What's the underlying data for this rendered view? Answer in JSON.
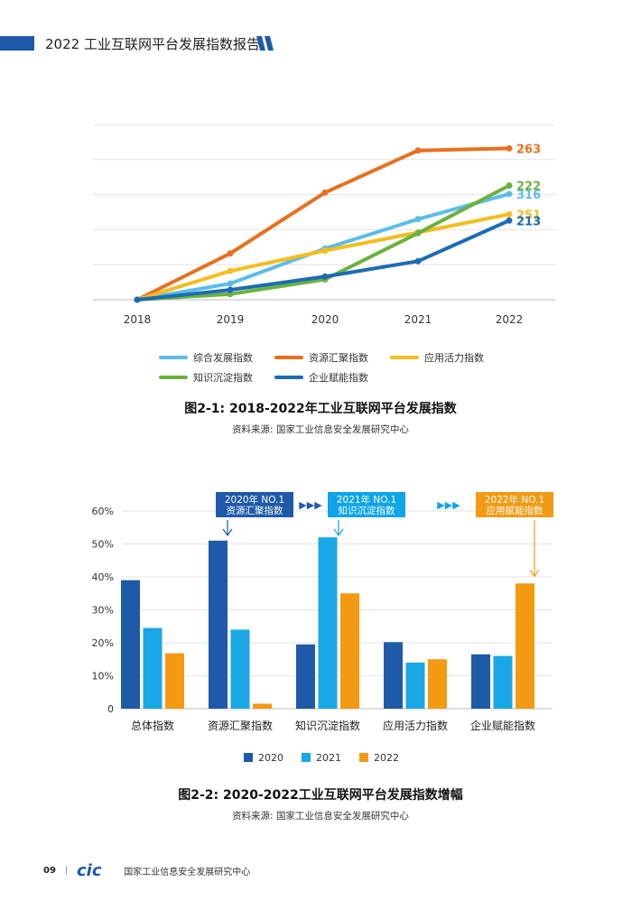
{
  "header": {
    "title": "2022 工业互联网平台发展指数报告"
  },
  "chart1": {
    "caption": "图2-1: 2018-2022年工业互联网平台发展指数",
    "source": "资料来源: 国家工业信息安全发展研究中心"
  },
  "chart2": {
    "caption": "图2-2: 2020-2022工业互联网平台发展指数增幅",
    "source": "资料来源: 国家工业信息安全发展研究中心",
    "callouts": [
      {
        "line1": "2020年 NO.1",
        "line2": "资源汇聚指数",
        "color": "#1e5aa8"
      },
      {
        "line1": "2021年 NO.1",
        "line2": "知识沉淀指数",
        "color": "#0ea5e9"
      },
      {
        "line1": "2022年 NO.1",
        "line2": "应用赋能指数",
        "color": "#f39a12"
      }
    ],
    "arrow_glyph": "▶▶▶"
  },
  "footer": {
    "page": "09",
    "separator": "|",
    "logo": "cic",
    "org": "国家工业信息安全发展研究中心"
  },
  "chart_data": [
    {
      "type": "line",
      "x": [
        "2018",
        "2019",
        "2020",
        "2021",
        "2022"
      ],
      "ylim": [
        100,
        350
      ],
      "grid": true,
      "legend": "bottom",
      "series": [
        {
          "name": "综合发展指数",
          "color": "#5bbde8",
          "values": [
            100,
            123,
            173,
            215,
            251
          ]
        },
        {
          "name": "资源汇聚指数",
          "color": "#e8701e",
          "values": [
            100,
            166,
            253,
            313,
            316
          ]
        },
        {
          "name": "应用活力指数",
          "color": "#f5bd1f",
          "values": [
            100,
            141,
            170,
            196,
            222
          ]
        },
        {
          "name": "知识沉淀指数",
          "color": "#6ab23e",
          "values": [
            100,
            108,
            129,
            195,
            263
          ]
        },
        {
          "name": "企业赋能指数",
          "color": "#1d6bb4",
          "values": [
            100,
            114,
            133,
            155,
            213
          ]
        }
      ],
      "data_labels": [
        "316",
        "263",
        "251",
        "222",
        "213"
      ]
    },
    {
      "type": "bar",
      "categories": [
        "总体指数",
        "资源汇聚指数",
        "知识沉淀指数",
        "应用活力指数",
        "企业赋能指数"
      ],
      "ylim": [
        0,
        60
      ],
      "yticks": [
        "0",
        "10%",
        "20%",
        "30%",
        "40%",
        "50%",
        "60%"
      ],
      "grid": true,
      "legend": "bottom",
      "series": [
        {
          "name": "2020",
          "color": "#1e5aa8",
          "values": [
            39,
            51,
            19.5,
            20.2,
            16.5
          ]
        },
        {
          "name": "2021",
          "color": "#1aa7e6",
          "values": [
            24.5,
            24,
            52,
            14,
            16
          ]
        },
        {
          "name": "2022",
          "color": "#f39a12",
          "values": [
            16.8,
            1.5,
            35,
            15,
            38
          ]
        }
      ]
    }
  ]
}
